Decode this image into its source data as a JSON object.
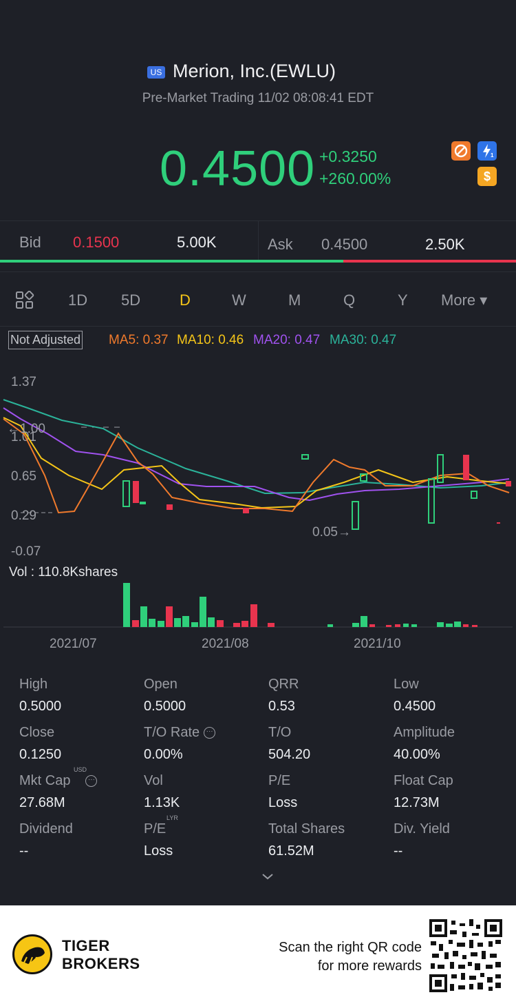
{
  "header": {
    "market_badge": "US",
    "title": "Merion, Inc.(EWLU)",
    "subtitle": "Pre-Market Trading 11/02 08:08:41 EDT",
    "price": "0.4500",
    "change": "+0.3250",
    "change_pct": "+260.00%",
    "icons": [
      "no-short-icon",
      "lightning-icon",
      "dollar-icon"
    ]
  },
  "bid_ask": {
    "bid_label": "Bid",
    "bid_price": "0.1500",
    "bid_size": "5.00K",
    "ask_label": "Ask",
    "ask_price": "0.4500",
    "ask_size": "2.50K",
    "bid_ratio": 0.665
  },
  "periods": {
    "grid_icon": "grid-layout-icon",
    "items": [
      "1D",
      "5D",
      "D",
      "W",
      "M",
      "Q",
      "Y"
    ],
    "active": "D",
    "more": "More ▾"
  },
  "indicators": {
    "adjust_label": "Not Adjusted",
    "ma5": "MA5: 0.37",
    "ma10": "MA10: 0.46",
    "ma20": "MA20: 0.47",
    "ma30": "MA30: 0.47"
  },
  "chart_data": {
    "type": "candlestick",
    "price_ticks": [
      "1.37",
      "1.01",
      "0.65",
      "0.29",
      "-0.07"
    ],
    "ylim": [
      -0.07,
      1.37
    ],
    "marker_high": "1.00",
    "marker_low": "0.05",
    "volume_label": "Vol  : 110.8Kshares",
    "x_ticks": [
      "2021/07",
      "2021/08",
      "2021/10"
    ],
    "colors": {
      "up": "#2fcf7b",
      "down": "#e8344e",
      "ma5": "#f07a2c",
      "ma10": "#f5c518",
      "ma20": "#a052ef",
      "ma30": "#2bb39a"
    }
  },
  "stats": [
    {
      "label": "High",
      "value": "0.5000"
    },
    {
      "label": "Open",
      "value": "0.5000"
    },
    {
      "label": "QRR",
      "value": "0.53"
    },
    {
      "label": "Low",
      "value": "0.4500"
    },
    {
      "label": "Close",
      "value": "0.1250"
    },
    {
      "label": "T/O Rate",
      "value": "0.00%"
    },
    {
      "label": "T/O",
      "value": "504.20"
    },
    {
      "label": "Amplitude",
      "value": "40.00%"
    },
    {
      "label": "Mkt Cap",
      "value": "27.68M"
    },
    {
      "label": "Vol",
      "value": "1.13K"
    },
    {
      "label": "P/E",
      "value": "Loss"
    },
    {
      "label": "Float Cap",
      "value": "12.73M"
    },
    {
      "label": "Dividend",
      "value": "--"
    },
    {
      "label": "P/E",
      "value": "Loss"
    },
    {
      "label": "Total Shares",
      "value": "61.52M"
    },
    {
      "label": "Div. Yield",
      "value": "--"
    }
  ],
  "stat_sups": {
    "mkt_cap": "USD",
    "pe_lyr": "LYR"
  },
  "footer": {
    "brand_line1": "TIGER",
    "brand_line2": "BROKERS",
    "scan_line1": "Scan the right QR code",
    "scan_line2": "for more rewards"
  }
}
